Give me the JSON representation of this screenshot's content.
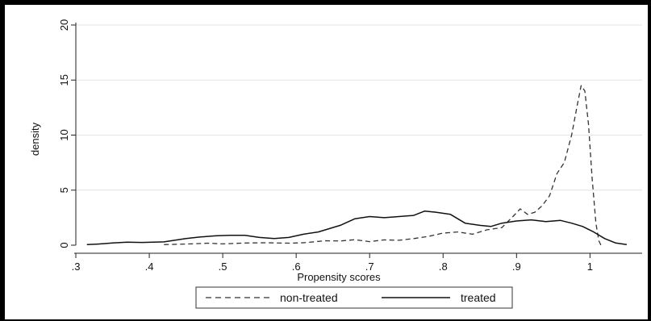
{
  "chart_data": {
    "type": "line",
    "xlabel": "Propensity scores",
    "ylabel": "density",
    "xlim": [
      0.3,
      1.06
    ],
    "ylim": [
      0,
      20
    ],
    "x_ticks": [
      0.3,
      0.4,
      0.5,
      0.6,
      0.7,
      0.8,
      0.9,
      1.0
    ],
    "x_tick_labels": [
      ".3",
      ".4",
      ".5",
      ".6",
      ".7",
      ".8",
      ".9",
      "1"
    ],
    "y_ticks": [
      0,
      5,
      10,
      15,
      20
    ],
    "y_tick_labels": [
      "0",
      "5",
      "10",
      "15",
      "20"
    ],
    "grid": "horizontal",
    "legend": "bottom",
    "series": [
      {
        "name": "non-treated",
        "style": "dashed",
        "color": "#333333",
        "points": [
          [
            0.42,
            0.05
          ],
          [
            0.45,
            0.1
          ],
          [
            0.48,
            0.18
          ],
          [
            0.5,
            0.12
          ],
          [
            0.53,
            0.2
          ],
          [
            0.56,
            0.22
          ],
          [
            0.59,
            0.18
          ],
          [
            0.61,
            0.22
          ],
          [
            0.64,
            0.4
          ],
          [
            0.66,
            0.38
          ],
          [
            0.68,
            0.5
          ],
          [
            0.7,
            0.32
          ],
          [
            0.72,
            0.48
          ],
          [
            0.74,
            0.45
          ],
          [
            0.76,
            0.6
          ],
          [
            0.78,
            0.8
          ],
          [
            0.8,
            1.1
          ],
          [
            0.82,
            1.2
          ],
          [
            0.84,
            1.0
          ],
          [
            0.86,
            1.4
          ],
          [
            0.88,
            1.6
          ],
          [
            0.895,
            2.6
          ],
          [
            0.905,
            3.3
          ],
          [
            0.915,
            2.8
          ],
          [
            0.925,
            3.0
          ],
          [
            0.935,
            3.6
          ],
          [
            0.945,
            4.5
          ],
          [
            0.955,
            6.5
          ],
          [
            0.965,
            7.5
          ],
          [
            0.975,
            10.0
          ],
          [
            0.982,
            12.5
          ],
          [
            0.988,
            14.5
          ],
          [
            0.993,
            14.0
          ],
          [
            0.998,
            11.0
          ],
          [
            1.003,
            6.0
          ],
          [
            1.008,
            2.0
          ],
          [
            1.012,
            0.4
          ],
          [
            1.015,
            0.0
          ]
        ]
      },
      {
        "name": "treated",
        "style": "solid",
        "color": "#111111",
        "points": [
          [
            0.315,
            0.05
          ],
          [
            0.33,
            0.1
          ],
          [
            0.35,
            0.2
          ],
          [
            0.37,
            0.28
          ],
          [
            0.39,
            0.25
          ],
          [
            0.42,
            0.3
          ],
          [
            0.45,
            0.6
          ],
          [
            0.47,
            0.75
          ],
          [
            0.49,
            0.85
          ],
          [
            0.51,
            0.9
          ],
          [
            0.53,
            0.9
          ],
          [
            0.55,
            0.7
          ],
          [
            0.57,
            0.6
          ],
          [
            0.59,
            0.7
          ],
          [
            0.61,
            1.0
          ],
          [
            0.63,
            1.2
          ],
          [
            0.66,
            1.8
          ],
          [
            0.68,
            2.4
          ],
          [
            0.7,
            2.6
          ],
          [
            0.72,
            2.5
          ],
          [
            0.74,
            2.6
          ],
          [
            0.76,
            2.7
          ],
          [
            0.775,
            3.1
          ],
          [
            0.79,
            3.0
          ],
          [
            0.81,
            2.8
          ],
          [
            0.83,
            2.0
          ],
          [
            0.85,
            1.8
          ],
          [
            0.865,
            1.7
          ],
          [
            0.88,
            2.0
          ],
          [
            0.9,
            2.2
          ],
          [
            0.92,
            2.3
          ],
          [
            0.94,
            2.15
          ],
          [
            0.96,
            2.25
          ],
          [
            0.975,
            2.0
          ],
          [
            0.99,
            1.7
          ],
          [
            1.005,
            1.2
          ],
          [
            1.02,
            0.6
          ],
          [
            1.035,
            0.2
          ],
          [
            1.05,
            0.05
          ]
        ]
      }
    ]
  }
}
